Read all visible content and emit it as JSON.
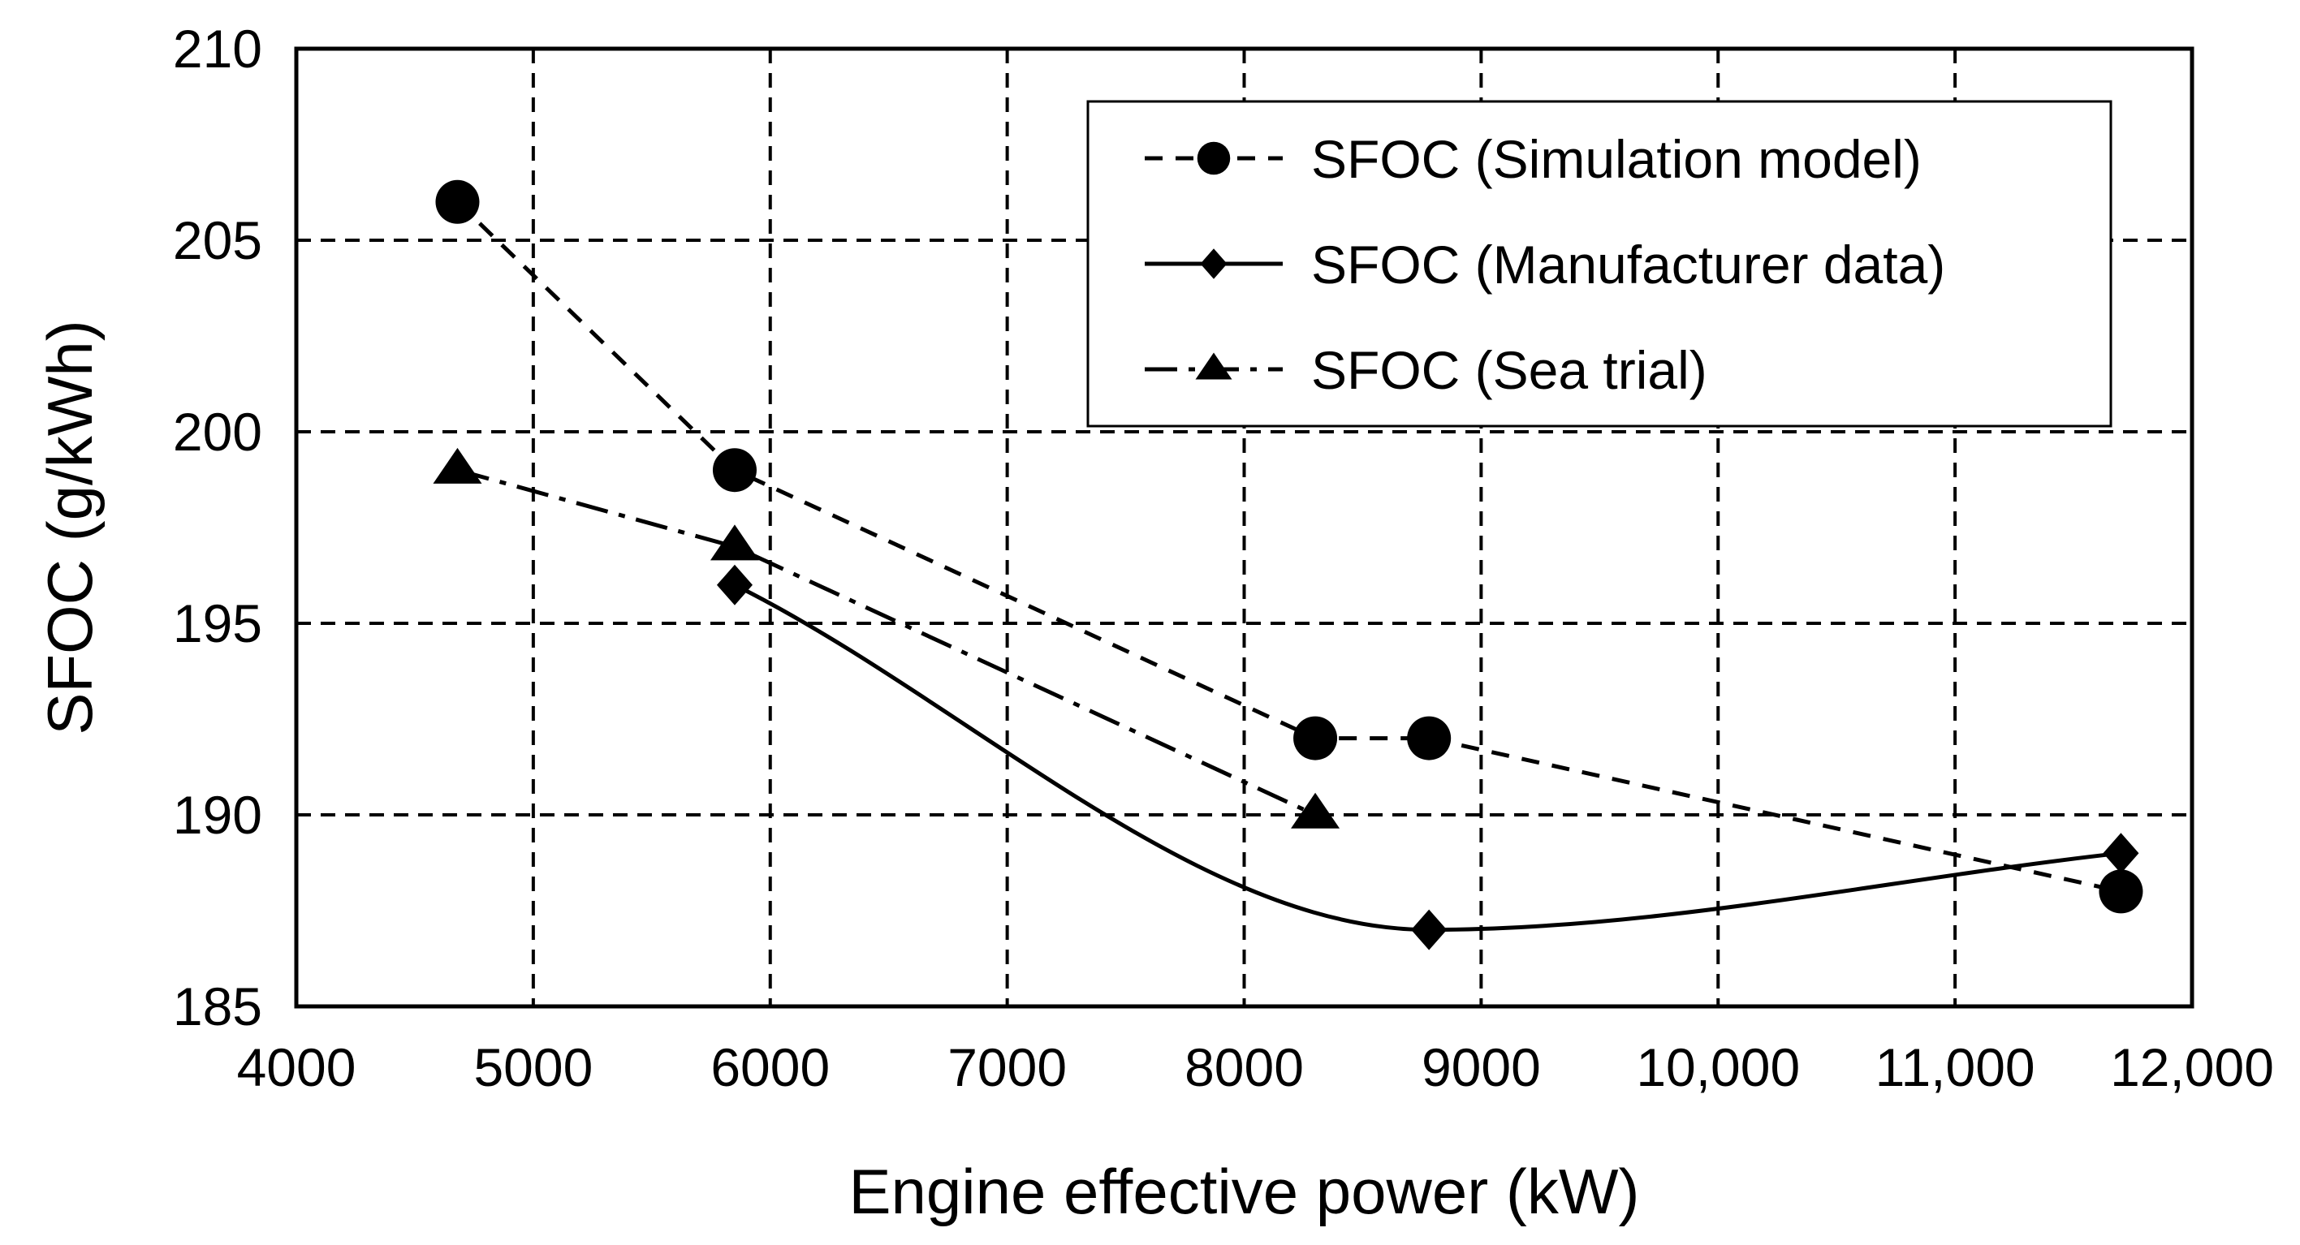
{
  "chart_data": {
    "type": "line",
    "title": "",
    "xlabel": "Engine effective power (kW)",
    "ylabel": "SFOC  (g/kWh)",
    "xlim": [
      4000,
      12000
    ],
    "ylim": [
      185,
      210
    ],
    "xticks": [
      4000,
      5000,
      6000,
      7000,
      8000,
      9000,
      10000,
      11000,
      12000
    ],
    "xtick_labels": [
      "4000",
      "5000",
      "6000",
      "7000",
      "8000",
      "9000",
      "10,000",
      "11,000",
      "12,000"
    ],
    "yticks": [
      185,
      190,
      195,
      200,
      205,
      210
    ],
    "ytick_labels": [
      "185",
      "190",
      "195",
      "200",
      "205",
      "210"
    ],
    "grid": true,
    "legend_position": "top-right",
    "series": [
      {
        "name": "SFOC (Simulation model)",
        "marker": "circle",
        "line": "dashed",
        "smooth": false,
        "x": [
          4680,
          5850,
          8300,
          8780,
          11700
        ],
        "y": [
          206,
          199,
          192,
          192,
          188
        ]
      },
      {
        "name": "SFOC (Manufacturer data)",
        "marker": "diamond",
        "line": "solid",
        "smooth": true,
        "x": [
          5850,
          8780,
          11700
        ],
        "y": [
          196,
          187,
          189
        ]
      },
      {
        "name": "SFOC (Sea trial)",
        "marker": "triangle",
        "line": "dashdot",
        "smooth": false,
        "x": [
          4680,
          5850,
          8300
        ],
        "y": [
          199,
          197,
          190
        ]
      }
    ]
  }
}
